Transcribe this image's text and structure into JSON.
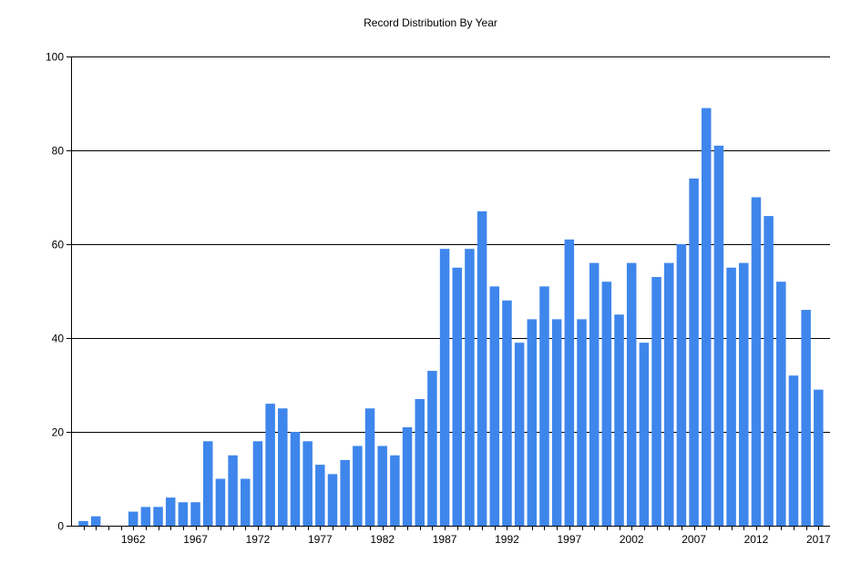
{
  "chart_data": {
    "type": "bar",
    "title": "Record Distribution By Year",
    "xlabel": "",
    "ylabel": "",
    "x": [
      1958,
      1959,
      1960,
      1961,
      1962,
      1963,
      1964,
      1965,
      1966,
      1967,
      1968,
      1969,
      1970,
      1971,
      1972,
      1973,
      1974,
      1975,
      1976,
      1977,
      1978,
      1979,
      1980,
      1981,
      1982,
      1983,
      1984,
      1985,
      1986,
      1987,
      1988,
      1989,
      1990,
      1991,
      1992,
      1993,
      1994,
      1995,
      1996,
      1997,
      1998,
      1999,
      2000,
      2001,
      2002,
      2003,
      2004,
      2005,
      2006,
      2007,
      2008,
      2009,
      2010,
      2011,
      2012,
      2013,
      2014,
      2015,
      2016,
      2017
    ],
    "values": [
      1,
      2,
      0,
      0,
      3,
      4,
      4,
      6,
      5,
      5,
      18,
      10,
      15,
      10,
      18,
      26,
      25,
      20,
      18,
      13,
      11,
      14,
      17,
      25,
      17,
      15,
      21,
      27,
      33,
      59,
      55,
      59,
      67,
      51,
      48,
      39,
      44,
      51,
      44,
      61,
      44,
      56,
      52,
      45,
      56,
      39,
      53,
      56,
      60,
      74,
      89,
      81,
      55,
      56,
      70,
      66,
      52,
      32,
      46,
      29
    ],
    "x_tick_labels": [
      "1962",
      "1967",
      "1972",
      "1977",
      "1982",
      "1987",
      "1992",
      "1997",
      "2002",
      "2007",
      "2012",
      "2017"
    ],
    "y_tick_labels": [
      "0",
      "20",
      "40",
      "60",
      "80",
      "100"
    ],
    "ylim": [
      0,
      100
    ],
    "grid": "horizontal",
    "legend": "none",
    "bar_color": "#3e86ec",
    "grid_color": "#000000"
  }
}
